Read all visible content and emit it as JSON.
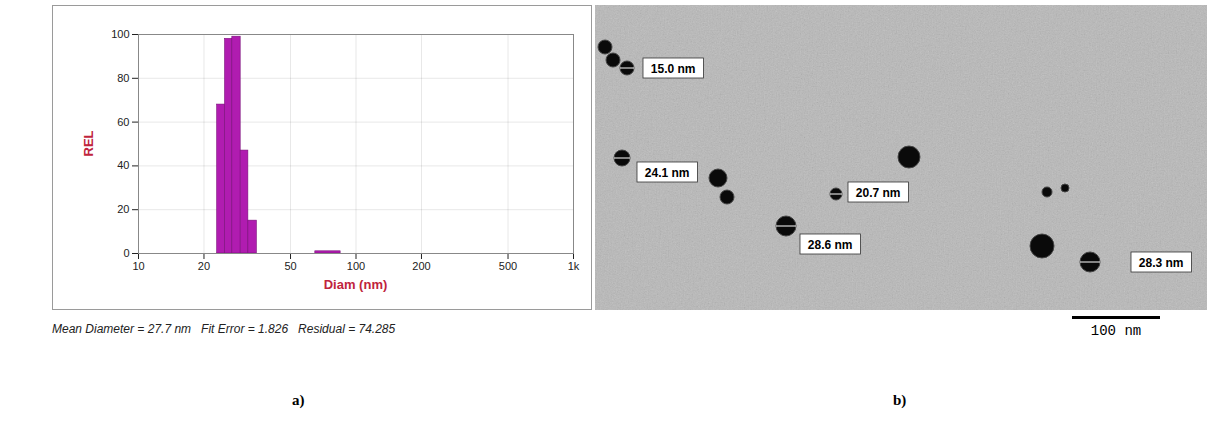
{
  "chart_data": {
    "type": "histogram",
    "panel": "a)",
    "xlabel": "Diam (nm)",
    "ylabel": "REL",
    "bins": [
      23,
      25,
      27,
      29.5,
      32,
      35,
      65,
      85
    ],
    "counts": [
      68,
      98,
      99,
      47,
      15,
      0,
      1
    ],
    "color": "#b01cb0",
    "log": "x",
    "xlim": [
      10,
      1000
    ],
    "xticks": [
      10,
      20,
      50,
      100,
      200,
      500,
      {
        "value": 1000,
        "label": "1k"
      }
    ],
    "ylim": [
      0,
      100
    ],
    "yticks": [
      0,
      20,
      40,
      60,
      80,
      100
    ],
    "grid": true,
    "caption": "Mean Diameter = 27.7 nm   Fit Error = 1.826   Residual = 74.285"
  },
  "image": {
    "panel": "b)",
    "particle_labels": [
      "15.0 nm",
      "24.1 nm",
      "20.7 nm",
      "28.6 nm",
      "28.3 nm"
    ],
    "scale_bar": "100 nm"
  }
}
